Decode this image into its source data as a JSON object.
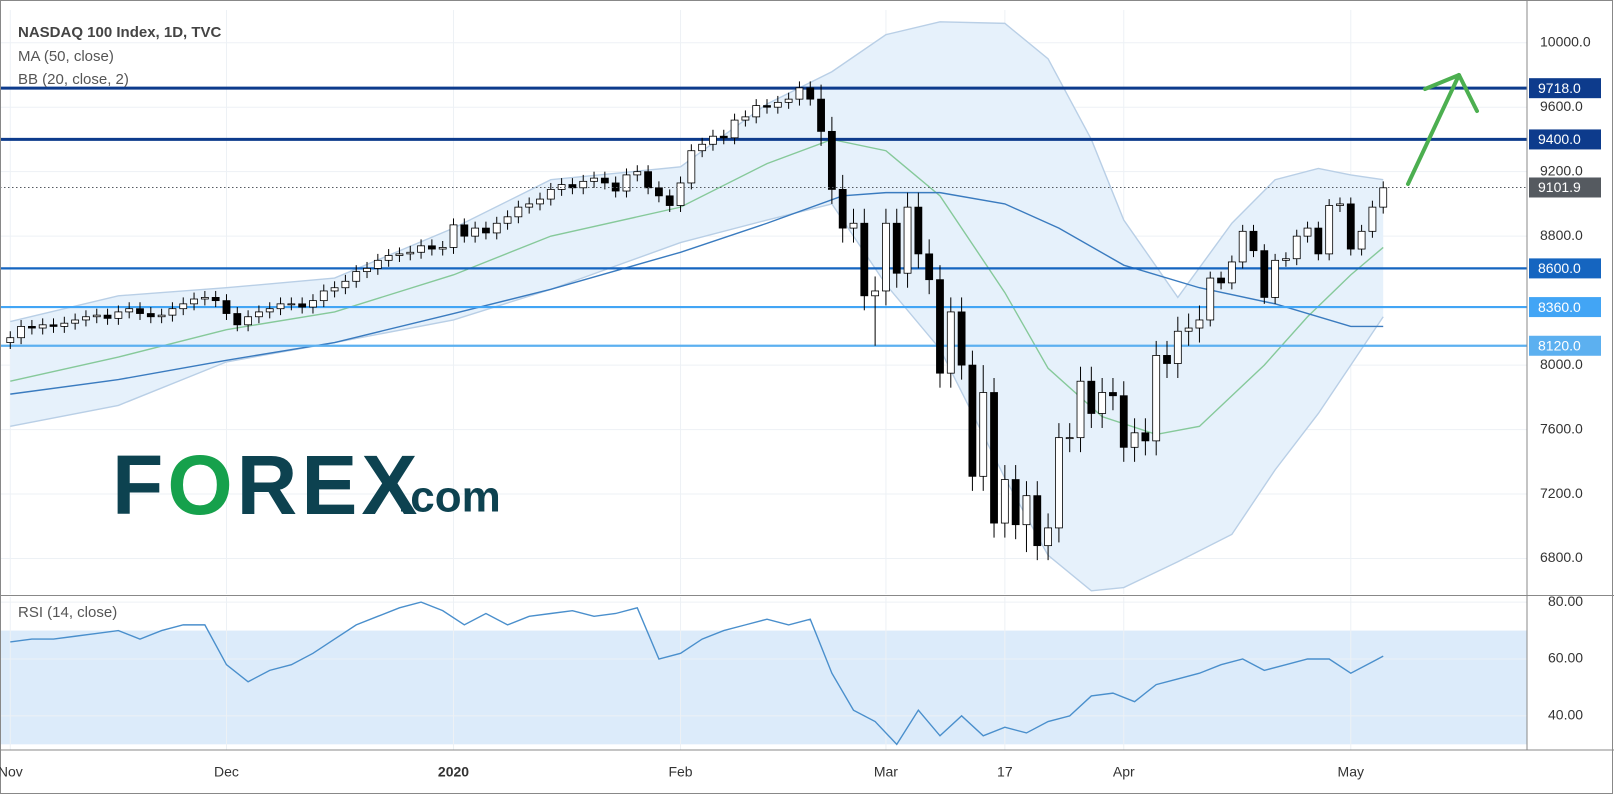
{
  "chart_data": [
    {
      "type": "candlestick",
      "title": "NASDAQ 100 Index, 1D, TVC",
      "indicators": [
        "MA (50, close)",
        "BB (20, close, 2)"
      ],
      "xlim": [
        -0.95,
        140.3
      ],
      "ylim": [
        6580,
        10203
      ],
      "xticks": [
        {
          "value": 0,
          "label": "Nov"
        },
        {
          "value": 20,
          "label": "Dec"
        },
        {
          "value": 41,
          "label": "2020"
        },
        {
          "value": 62,
          "label": "Feb"
        },
        {
          "value": 81,
          "label": "Mar"
        },
        {
          "value": 92,
          "label": "17"
        },
        {
          "value": 103,
          "label": "Apr"
        },
        {
          "value": 124,
          "label": "May"
        }
      ],
      "yticks": [
        {
          "value": 6800,
          "label": "6800.0"
        },
        {
          "value": 7200,
          "label": "7200.0"
        },
        {
          "value": 7600,
          "label": "7600.0"
        },
        {
          "value": 8000,
          "label": "8000.0"
        },
        {
          "value": 8800,
          "label": "8800.0"
        },
        {
          "value": 9200,
          "label": "9200.0"
        },
        {
          "value": 9600,
          "label": "9600.0"
        },
        {
          "value": 10000,
          "label": "10000.0"
        }
      ],
      "grid": true,
      "up_color": "#ffffff",
      "down_color": "#000000",
      "open": [
        8140,
        8170,
        8240,
        8230,
        8250,
        8240,
        8260,
        8280,
        8300,
        8310,
        8290,
        8330,
        8350,
        8320,
        8300,
        8310,
        8350,
        8380,
        8410,
        8420,
        8400,
        8320,
        8250,
        8300,
        8330,
        8350,
        8380,
        8380,
        8360,
        8400,
        8460,
        8480,
        8520,
        8580,
        8600,
        8650,
        8680,
        8690,
        8700,
        8740,
        8720,
        8730,
        8870,
        8800,
        8850,
        8820,
        8880,
        8920,
        8980,
        9000,
        9030,
        9090,
        9120,
        9100,
        9140,
        9160,
        9130,
        9080,
        9180,
        9200,
        9100,
        9050,
        8990,
        9130,
        9330,
        9370,
        9420,
        9410,
        9520,
        9540,
        9610,
        9600,
        9630,
        9650,
        9720,
        9650,
        9450,
        9090,
        8850,
        8880,
        8430,
        8460,
        8880,
        8570,
        8980,
        8690,
        8530,
        7950,
        8330,
        8000,
        7310,
        7830,
        7020,
        7290,
        7010,
        7190,
        6880,
        6990,
        7550,
        7550,
        7900,
        7700,
        7830,
        7810,
        7490,
        7580,
        7530,
        8060,
        8010,
        8210,
        8230,
        8280,
        8540,
        8510,
        8640,
        8830,
        8710,
        8420,
        8650,
        8660,
        8800,
        8850,
        8690,
        8990,
        9000,
        8720,
        8830,
        8980
      ],
      "high": [
        8210,
        8280,
        8280,
        8290,
        8290,
        8300,
        8320,
        8340,
        8350,
        8350,
        8370,
        8390,
        8390,
        8360,
        8350,
        8390,
        8420,
        8450,
        8460,
        8460,
        8440,
        8360,
        8340,
        8370,
        8390,
        8420,
        8420,
        8420,
        8440,
        8500,
        8520,
        8560,
        8620,
        8640,
        8690,
        8720,
        8730,
        8740,
        8780,
        8780,
        8770,
        8910,
        8910,
        8890,
        8890,
        8920,
        8960,
        9020,
        9040,
        9070,
        9130,
        9160,
        9160,
        9180,
        9200,
        9200,
        9170,
        9220,
        9240,
        9240,
        9140,
        9090,
        9170,
        9370,
        9410,
        9460,
        9460,
        9560,
        9580,
        9650,
        9650,
        9670,
        9690,
        9760,
        9760,
        9740,
        9540,
        9180,
        8970,
        8970,
        8550,
        8970,
        8970,
        9070,
        9070,
        8780,
        8620,
        8420,
        8420,
        8090,
        8000,
        7920,
        7380,
        7380,
        7280,
        7280,
        7080,
        7640,
        7640,
        7990,
        7990,
        7920,
        7920,
        7900,
        7670,
        7670,
        8150,
        8150,
        8300,
        8320,
        8370,
        8580,
        8580,
        8680,
        8870,
        8870,
        8750,
        8690,
        8700,
        8840,
        8890,
        8890,
        9030,
        9040,
        9040,
        8870,
        9020,
        9140
      ],
      "low": [
        8100,
        8130,
        8190,
        8190,
        8200,
        8200,
        8220,
        8240,
        8260,
        8250,
        8250,
        8290,
        8280,
        8260,
        8260,
        8270,
        8310,
        8340,
        8370,
        8360,
        8280,
        8210,
        8210,
        8260,
        8290,
        8310,
        8340,
        8320,
        8320,
        8360,
        8420,
        8440,
        8480,
        8540,
        8560,
        8610,
        8640,
        8650,
        8660,
        8680,
        8680,
        8690,
        8760,
        8760,
        8780,
        8780,
        8840,
        8880,
        8940,
        8960,
        8990,
        9050,
        9060,
        9060,
        9100,
        9090,
        9040,
        9040,
        9140,
        9060,
        9010,
        8950,
        8950,
        9090,
        9290,
        9330,
        9370,
        9370,
        9480,
        9500,
        9560,
        9560,
        9590,
        9610,
        9610,
        9360,
        9000,
        8760,
        8760,
        8340,
        8120,
        8370,
        8480,
        8480,
        8600,
        8440,
        7860,
        7860,
        7910,
        7220,
        7220,
        6930,
        6930,
        6920,
        6840,
        6790,
        6790,
        6900,
        7460,
        7460,
        7610,
        7610,
        7720,
        7400,
        7400,
        7440,
        7440,
        7920,
        7920,
        8120,
        8140,
        8240,
        8470,
        8470,
        8600,
        8670,
        8380,
        8380,
        8610,
        8620,
        8760,
        8650,
        8650,
        8950,
        8680,
        8680,
        8790,
        8940
      ],
      "close": [
        8170,
        8240,
        8230,
        8250,
        8240,
        8260,
        8280,
        8300,
        8310,
        8290,
        8330,
        8350,
        8320,
        8300,
        8310,
        8350,
        8380,
        8410,
        8420,
        8400,
        8320,
        8250,
        8300,
        8330,
        8350,
        8380,
        8380,
        8360,
        8400,
        8460,
        8480,
        8520,
        8580,
        8600,
        8650,
        8680,
        8690,
        8700,
        8740,
        8720,
        8730,
        8870,
        8800,
        8850,
        8820,
        8880,
        8920,
        8980,
        9000,
        9030,
        9090,
        9120,
        9100,
        9140,
        9160,
        9130,
        9080,
        9180,
        9200,
        9100,
        9050,
        8990,
        9130,
        9330,
        9370,
        9420,
        9410,
        9520,
        9540,
        9610,
        9600,
        9630,
        9650,
        9720,
        9650,
        9450,
        9090,
        8850,
        8880,
        8430,
        8460,
        8880,
        8570,
        8980,
        8690,
        8530,
        7950,
        8330,
        8000,
        7310,
        7830,
        7020,
        7290,
        7010,
        7190,
        6880,
        6990,
        7550,
        7550,
        7900,
        7700,
        7830,
        7810,
        7490,
        7580,
        7530,
        8060,
        8010,
        8210,
        8230,
        8280,
        8540,
        8510,
        8640,
        8830,
        8710,
        8420,
        8650,
        8660,
        8800,
        8850,
        8690,
        8990,
        9000,
        8720,
        8830,
        8980,
        9100
      ],
      "bb_fill": "#e6f1fb",
      "lines": [
        {
          "color": "#b9cfe6",
          "x": [
            0,
            10,
            20,
            30,
            41,
            50,
            62,
            70,
            76,
            81,
            86,
            92,
            96,
            100,
            103,
            108,
            113,
            117,
            121,
            124,
            127
          ],
          "values": [
            8270,
            8430,
            8480,
            8540,
            8850,
            9150,
            9230,
            9620,
            9820,
            10050,
            10130,
            10120,
            9900,
            9400,
            8900,
            8420,
            8880,
            9150,
            9220,
            9180,
            9150
          ]
        },
        {
          "color": "#b9cfe6",
          "x": [
            0,
            10,
            20,
            30,
            41,
            50,
            62,
            70,
            76,
            81,
            86,
            92,
            96,
            100,
            103,
            108,
            113,
            117,
            121,
            124,
            127
          ],
          "values": [
            7620,
            7750,
            8020,
            8140,
            8280,
            8470,
            8760,
            8900,
            9000,
            8500,
            8100,
            7300,
            6820,
            6600,
            6620,
            6780,
            6950,
            7350,
            7700,
            8000,
            8300
          ]
        },
        {
          "color": "#86c99a",
          "x": [
            0,
            10,
            20,
            30,
            41,
            50,
            62,
            70,
            76,
            81,
            86,
            92,
            96,
            101,
            106,
            110,
            116,
            120,
            124,
            127
          ],
          "values": [
            7900,
            8050,
            8220,
            8330,
            8560,
            8800,
            8980,
            9250,
            9400,
            9330,
            9050,
            8450,
            7980,
            7680,
            7570,
            7620,
            8000,
            8300,
            8560,
            8730
          ]
        },
        {
          "color": "#3a7bbf",
          "x": [
            0,
            10,
            20,
            30,
            41,
            50,
            62,
            70,
            77,
            81,
            86,
            92,
            97,
            103,
            110,
            117,
            124,
            127
          ],
          "values": [
            7820,
            7910,
            8030,
            8140,
            8320,
            8470,
            8700,
            8880,
            9050,
            9070,
            9070,
            9000,
            8850,
            8620,
            8480,
            8380,
            8240,
            8240
          ]
        }
      ],
      "levels": [
        {
          "value": 9718.0,
          "label": "9718.0",
          "color": "#0d3b8c"
        },
        {
          "value": 9400.0,
          "label": "9400.0",
          "color": "#0d3b8c"
        },
        {
          "value": 8600.0,
          "label": "8600.0",
          "color": "#1565c0"
        },
        {
          "value": 8360.0,
          "label": "8360.0",
          "color": "#42a5f5"
        },
        {
          "value": 8120.0,
          "label": "8120.0",
          "color": "#5cb0f0"
        }
      ],
      "last_price": {
        "value": 9101.9,
        "label": "9101.9",
        "color": "#555a60"
      }
    },
    {
      "type": "line",
      "title": "RSI (14, close)",
      "color": "#4a8fcc",
      "band": [
        30,
        70
      ],
      "band_color": "#dcebfa",
      "ylim": [
        28,
        81.8
      ],
      "yticks": [
        {
          "value": 40,
          "label": "40.00"
        },
        {
          "value": 60,
          "label": "60.00"
        },
        {
          "value": 80,
          "label": "80.00"
        }
      ],
      "x": [
        0,
        2,
        4,
        6,
        8,
        10,
        12,
        14,
        16,
        18,
        20,
        22,
        24,
        26,
        28,
        30,
        32,
        34,
        36,
        38,
        40,
        42,
        44,
        46,
        48,
        50,
        52,
        54,
        56,
        58,
        60,
        62,
        64,
        66,
        68,
        70,
        72,
        74,
        76,
        78,
        80,
        82,
        84,
        86,
        88,
        90,
        92,
        94,
        96,
        98,
        100,
        102,
        104,
        106,
        108,
        110,
        112,
        114,
        116,
        118,
        120,
        122,
        124,
        126,
        127
      ],
      "values": [
        66,
        67,
        67,
        68,
        69,
        70,
        67,
        70,
        72,
        72,
        58,
        52,
        56,
        58,
        62,
        67,
        72,
        75,
        78,
        80,
        77,
        72,
        76,
        72,
        75,
        76,
        77,
        75,
        76,
        78,
        60,
        62,
        67,
        70,
        72,
        74,
        72,
        74,
        55,
        42,
        38,
        30,
        42,
        33,
        40,
        33,
        36,
        34,
        38,
        40,
        47,
        48,
        45,
        51,
        53,
        55,
        58,
        60,
        56,
        58,
        60,
        60,
        55,
        59,
        61
      ]
    }
  ],
  "logo": {
    "text": "FOREX",
    "suffix": ".com"
  }
}
